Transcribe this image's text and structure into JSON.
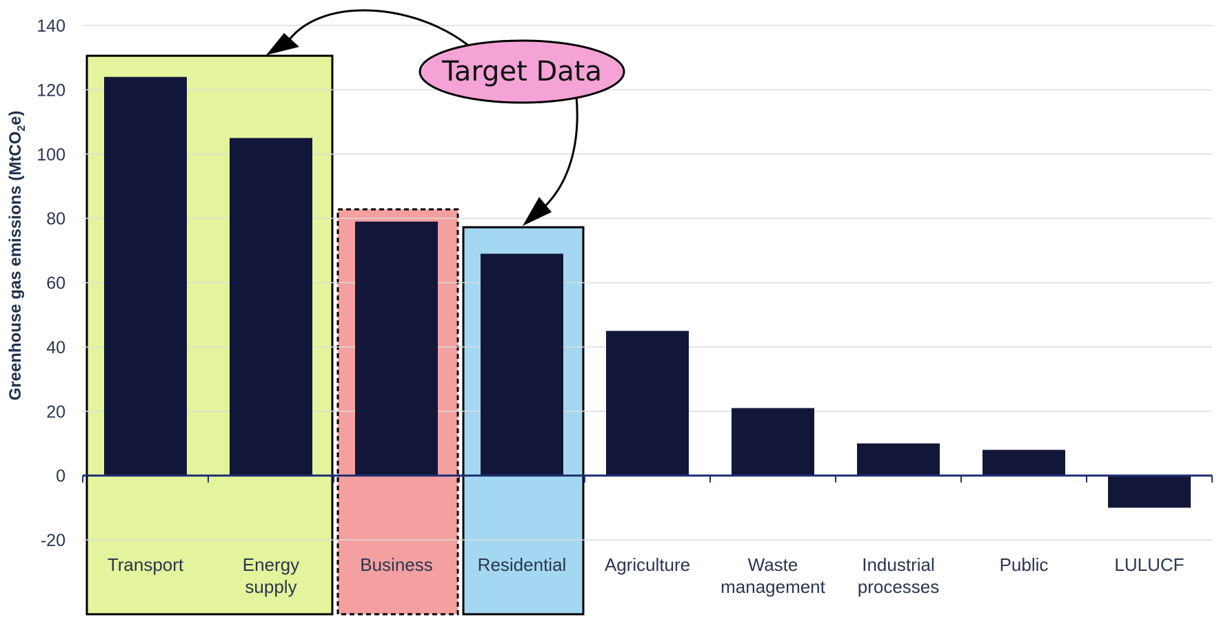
{
  "chart_data": {
    "type": "bar",
    "title": "",
    "xlabel": "",
    "ylabel": "Greenhouse gas emissions (MtCO",
    "ylabel_sub": "2",
    "ylabel_end": "e)",
    "ylim": [
      -20,
      140
    ],
    "yticks": [
      -20,
      0,
      20,
      40,
      60,
      80,
      100,
      120,
      140
    ],
    "grid": true,
    "categories": [
      [
        "Transport"
      ],
      [
        "Energy",
        "supply"
      ],
      [
        "Business"
      ],
      [
        "Residential"
      ],
      [
        "Agriculture"
      ],
      [
        "Waste",
        "management"
      ],
      [
        "Industrial",
        "processes"
      ],
      [
        "Public"
      ],
      [
        "LULUCF"
      ]
    ],
    "values": [
      124,
      105,
      79,
      69,
      45,
      21,
      10,
      8,
      -10
    ],
    "bar_color": "#12173a",
    "highlights": [
      {
        "group": [
          0,
          1
        ],
        "color": "#e3f49c",
        "border": "solid"
      },
      {
        "group": [
          2
        ],
        "color": "#f4a0a0",
        "border": "dashed"
      },
      {
        "group": [
          3
        ],
        "color": "#a4d8f2",
        "border": "solid"
      }
    ]
  },
  "callout": {
    "label": "Target Data",
    "color": "#f5a3d6"
  }
}
